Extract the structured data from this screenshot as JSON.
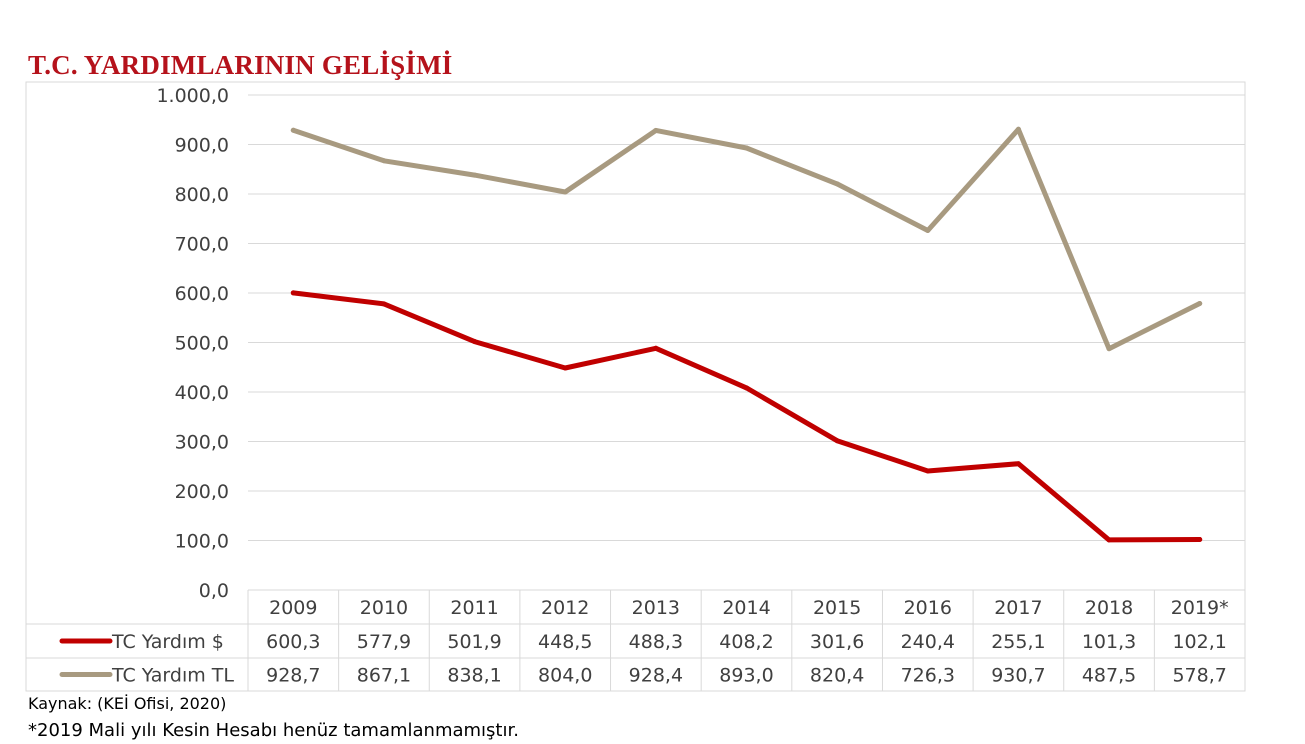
{
  "chart_data": {
    "type": "line",
    "title": "T.C. YARDIMLARININ GELİŞİMİ",
    "categories": [
      "2009",
      "2010",
      "2011",
      "2012",
      "2013",
      "2014",
      "2015",
      "2016",
      "2017",
      "2018",
      "2019*"
    ],
    "series": [
      {
        "name": "TC Yardım $",
        "color": "#c00000",
        "values": [
          600.3,
          577.9,
          501.9,
          448.5,
          488.3,
          408.2,
          301.6,
          240.4,
          255.1,
          101.3,
          102.1
        ],
        "labels": [
          "600,3",
          "577,9",
          "501,9",
          "448,5",
          "488,3",
          "408,2",
          "301,6",
          "240,4",
          "255,1",
          "101,3",
          "102,1"
        ]
      },
      {
        "name": "TC Yardım TL",
        "color": "#a89a80",
        "values": [
          928.7,
          867.1,
          838.1,
          804.0,
          928.4,
          893.0,
          820.4,
          726.3,
          930.7,
          487.5,
          578.7
        ],
        "labels": [
          "928,7",
          "867,1",
          "838,1",
          "804,0",
          "928,4",
          "893,0",
          "820,4",
          "726,3",
          "930,7",
          "487,5",
          "578,7"
        ]
      }
    ],
    "ylim": [
      0,
      1000
    ],
    "yticks": [
      0,
      100,
      200,
      300,
      400,
      500,
      600,
      700,
      800,
      900,
      1000
    ],
    "ytick_labels": [
      "0,0",
      "100,0",
      "200,0",
      "300,0",
      "400,0",
      "500,0",
      "600,0",
      "700,0",
      "800,0",
      "900,0",
      "1.000,0"
    ],
    "grid": true,
    "legend": "data-table-below"
  },
  "source": "Kaynak: (KEİ Ofisi, 2020)",
  "note": "*2019 Mali yılı Kesin Hesabı henüz tamamlanmamıştır."
}
